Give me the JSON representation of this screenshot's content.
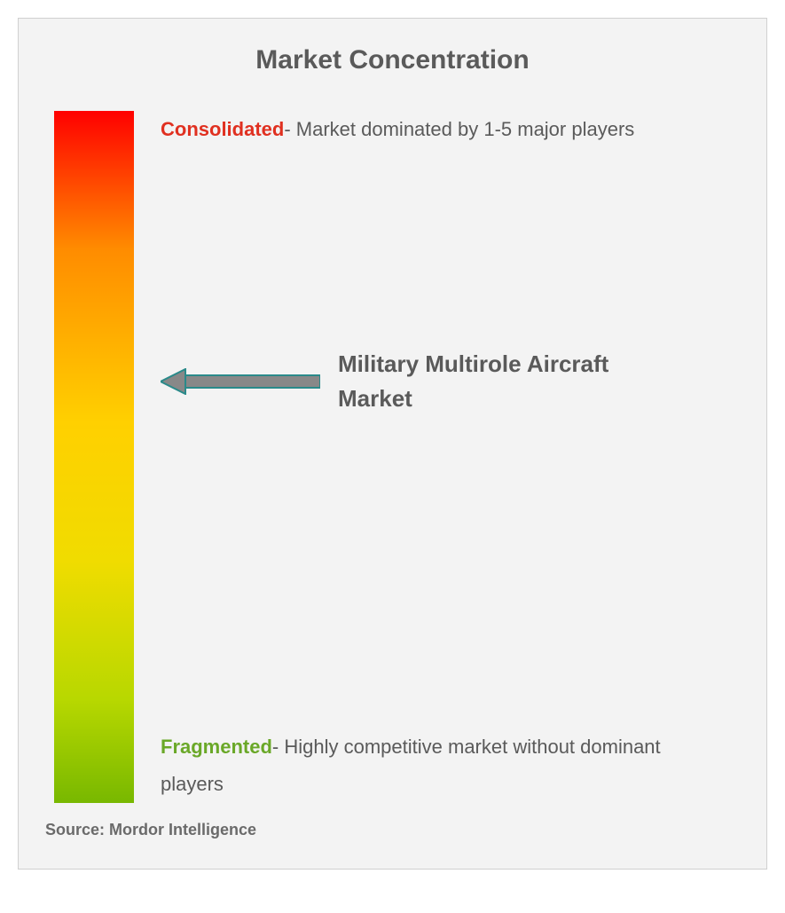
{
  "title": "Market Concentration",
  "gradient": {
    "colors": [
      "#ff0000",
      "#ff8c00",
      "#ffd000",
      "#f0dc00",
      "#b8d800",
      "#78b800"
    ],
    "stops": [
      0,
      20,
      45,
      65,
      85,
      100
    ]
  },
  "consolidated": {
    "label": "Consolidated",
    "label_color": "#e03020",
    "rest": "- Market dominated by 1-5 major players",
    "text_color": "#5a5a5a",
    "fontsize": 22
  },
  "fragmented": {
    "label": "Fragmented",
    "label_color": "#6aa828",
    "rest": "- Highly competitive market without dominant players",
    "text_color": "#5a5a5a",
    "fontsize": 22
  },
  "pointer": {
    "label": "Military Multirole Aircraft Market",
    "position_percent": 38,
    "arrow_color": "#2a8a8a",
    "arrow_fill": "#888888",
    "fontsize": 26
  },
  "source": "Source: Mordor Intelligence",
  "background_color": "#f3f3f3",
  "title_fontsize": 30,
  "title_color": "#5a5a5a"
}
